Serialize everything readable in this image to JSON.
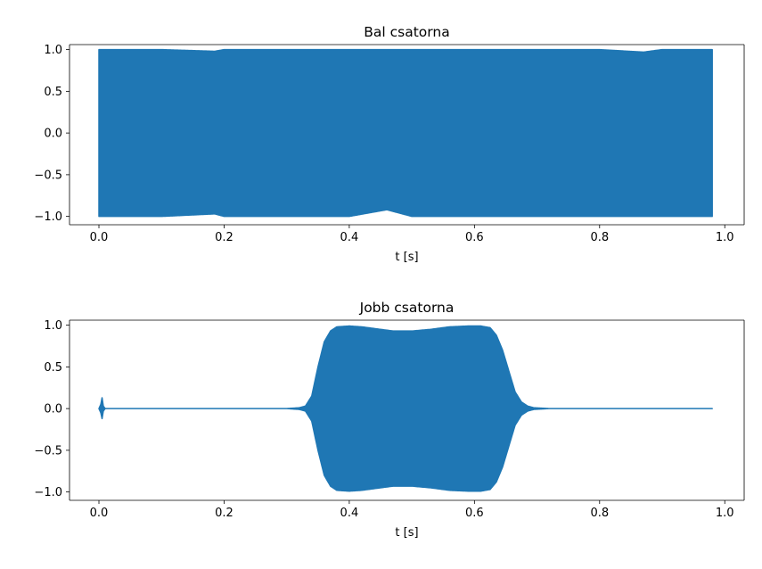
{
  "chart_data": [
    {
      "type": "line",
      "title": "Bal csatorna",
      "xlabel": "t [s]",
      "ylabel": "",
      "xlim": [
        -0.047,
        1.031
      ],
      "ylim": [
        -1.1,
        1.06
      ],
      "xticks": [
        0.0,
        0.2,
        0.4,
        0.6,
        0.8,
        1.0
      ],
      "xtick_labels": [
        "0.0",
        "0.2",
        "0.4",
        "0.6",
        "0.8",
        "1.0"
      ],
      "yticks": [
        1.0,
        0.5,
        0.0,
        -0.5,
        -1.0
      ],
      "ytick_labels": [
        "1.0",
        "0.5",
        "0.0",
        "−0.5",
        "−1.0"
      ],
      "grid": false,
      "color": "#1f77b4",
      "series": [
        {
          "x": [
            0.0,
            0.1,
            0.185,
            0.2,
            0.3,
            0.4,
            0.46,
            0.5,
            0.56,
            0.6,
            0.7,
            0.8,
            0.87,
            0.9,
            0.98
          ],
          "upper": [
            1.0,
            1.0,
            0.98,
            1.0,
            1.0,
            1.0,
            1.0,
            1.0,
            1.0,
            1.0,
            1.0,
            1.0,
            0.97,
            1.0,
            1.0
          ],
          "lower": [
            -1.0,
            -1.0,
            -0.97,
            -1.0,
            -1.0,
            -1.0,
            -0.92,
            -1.0,
            -1.0,
            -1.0,
            -1.0,
            -1.0,
            -1.0,
            -1.0,
            -1.0
          ]
        }
      ]
    },
    {
      "type": "line",
      "title": "Jobb csatorna",
      "xlabel": "t [s]",
      "ylabel": "",
      "xlim": [
        -0.047,
        1.031
      ],
      "ylim": [
        -1.1,
        1.06
      ],
      "xticks": [
        0.0,
        0.2,
        0.4,
        0.6,
        0.8,
        1.0
      ],
      "xtick_labels": [
        "0.0",
        "0.2",
        "0.4",
        "0.6",
        "0.8",
        "1.0"
      ],
      "yticks": [
        1.0,
        0.5,
        0.0,
        -0.5,
        -1.0
      ],
      "ytick_labels": [
        "1.0",
        "0.5",
        "0.0",
        "−0.5",
        "−1.0"
      ],
      "grid": false,
      "color": "#1f77b4",
      "series": [
        {
          "x": [
            0.0,
            0.003,
            0.005,
            0.007,
            0.01,
            0.1,
            0.3,
            0.32,
            0.33,
            0.34,
            0.35,
            0.36,
            0.37,
            0.38,
            0.4,
            0.42,
            0.45,
            0.47,
            0.5,
            0.53,
            0.56,
            0.59,
            0.61,
            0.625,
            0.635,
            0.645,
            0.655,
            0.665,
            0.675,
            0.685,
            0.695,
            0.72,
            0.98
          ],
          "upper": [
            0.0,
            0.05,
            0.13,
            0.03,
            0.0,
            0.0,
            0.0,
            0.01,
            0.03,
            0.15,
            0.5,
            0.8,
            0.93,
            0.98,
            0.99,
            0.98,
            0.95,
            0.93,
            0.93,
            0.95,
            0.98,
            0.99,
            0.99,
            0.97,
            0.88,
            0.7,
            0.45,
            0.2,
            0.08,
            0.03,
            0.01,
            0.0,
            0.0
          ],
          "lower": [
            0.0,
            -0.05,
            -0.12,
            -0.03,
            0.0,
            0.0,
            0.0,
            -0.01,
            -0.03,
            -0.15,
            -0.5,
            -0.8,
            -0.93,
            -0.98,
            -0.99,
            -0.98,
            -0.95,
            -0.93,
            -0.93,
            -0.95,
            -0.98,
            -0.99,
            -0.99,
            -0.97,
            -0.88,
            -0.7,
            -0.45,
            -0.2,
            -0.08,
            -0.03,
            -0.01,
            0.0,
            0.0
          ]
        }
      ]
    }
  ]
}
